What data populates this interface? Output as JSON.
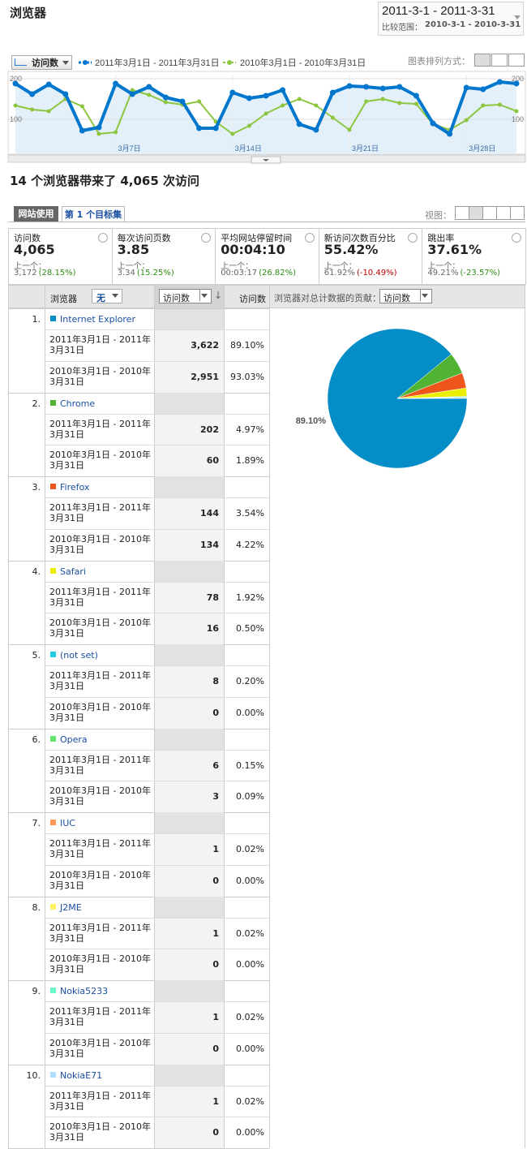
{
  "header": {
    "title": "浏览器",
    "date_range": "2011-3-1 - 2011-3-31",
    "compare_label": "比较范围：",
    "compare_range": "2010-3-1 - 2010-3-31"
  },
  "toolbar": {
    "metric": "访问数",
    "arrangement_label": "图表排列方式："
  },
  "chart_data": [
    {
      "type": "line",
      "categories": [
        null,
        null,
        null,
        null,
        null,
        null,
        "3月7日",
        null,
        null,
        null,
        null,
        null,
        null,
        "3月14日",
        null,
        null,
        null,
        null,
        null,
        null,
        "3月21日",
        null,
        null,
        null,
        null,
        null,
        null,
        "3月28日",
        null,
        null,
        null
      ],
      "series": [
        {
          "name": "2011年3月1日 - 2011年3月31日",
          "color": "#0077cc",
          "values": [
            188,
            162,
            186,
            162,
            72,
            80,
            188,
            162,
            180,
            154,
            144,
            78,
            78,
            166,
            152,
            158,
            172,
            88,
            74,
            166,
            182,
            180,
            176,
            180,
            158,
            90,
            64,
            178,
            174,
            192,
            188
          ]
        },
        {
          "name": "2010年3月1日 - 2010年3月31日",
          "color": "#8cc63f",
          "values": [
            134,
            124,
            120,
            150,
            132,
            64,
            68,
            172,
            160,
            142,
            136,
            144,
            94,
            64,
            84,
            114,
            134,
            150,
            134,
            104,
            74,
            144,
            150,
            140,
            138,
            88,
            74,
            98,
            134,
            136,
            120
          ]
        }
      ],
      "ylim": [
        14,
        210
      ],
      "yticks": [
        100,
        200
      ],
      "grid": true,
      "area": true
    },
    {
      "type": "pie",
      "values": [
        89.1,
        4.97,
        3.54,
        1.92,
        0.2,
        0.15,
        0.02,
        0.02,
        0.02,
        0.02
      ],
      "colors": [
        "#058dc7",
        "#50b432",
        "#ed561b",
        "#edef00",
        "#24cbe5",
        "#64e572",
        "#ff9655",
        "#fff263",
        "#6af9c4",
        "#b2deff"
      ],
      "value_labels": [
        "89.10%",
        null,
        null,
        null,
        null,
        null,
        null,
        null,
        null,
        null
      ]
    }
  ],
  "summary": "14 个浏览器带来了 4,065 次访问",
  "tabs": [
    "网站使用",
    "第 1 个目标集"
  ],
  "view_label": "视图：",
  "metrics": [
    {
      "label": "访问数",
      "value": "4,065",
      "prev_label": "上一个：",
      "prev": "3,172",
      "change": "(28.15%)",
      "change_color": "#2f8f16"
    },
    {
      "label": "每次访问页数",
      "value": "3.85",
      "prev_label": "上一个：",
      "prev": "3.34",
      "change": "(15.25%)",
      "change_color": "#2f8f16"
    },
    {
      "label": "平均网站停留时间",
      "value": "00:04:10",
      "prev_label": "上一个：",
      "prev": "00:03:17",
      "change": "(26.82%)",
      "change_color": "#2f8f16"
    },
    {
      "label": "新访问次数百分比",
      "value": "55.42%",
      "prev_label": "上一个：",
      "prev": "61.92%",
      "change": "(-10.49%)",
      "change_color": "#c00000"
    },
    {
      "label": "跳出率",
      "value": "37.61%",
      "prev_label": "上一个：",
      "prev": "49.21%",
      "change": "(-23.57%)",
      "change_color": "#2f8f16"
    }
  ],
  "table": {
    "headers": {
      "dimension": "浏览器",
      "secondary": "无",
      "sort_metric": "访问数",
      "metric": "访问数",
      "contribution": "浏览器对总计数据的贡献：",
      "contribution_metric": "访问数"
    },
    "periods": [
      "2011年3月1日 - 2011年3月31日",
      "2010年3月1日 - 2010年3月31日"
    ],
    "rows": [
      {
        "index": "1.",
        "name": "Internet Explorer",
        "visits": [
          "3,622",
          "2,951"
        ],
        "shares": [
          "89.10%",
          "93.03%"
        ]
      },
      {
        "index": "2.",
        "name": "Chrome",
        "visits": [
          "202",
          "60"
        ],
        "shares": [
          "4.97%",
          "1.89%"
        ]
      },
      {
        "index": "3.",
        "name": "Firefox",
        "visits": [
          "144",
          "134"
        ],
        "shares": [
          "3.54%",
          "4.22%"
        ]
      },
      {
        "index": "4.",
        "name": "Safari",
        "visits": [
          "78",
          "16"
        ],
        "shares": [
          "1.92%",
          "0.50%"
        ]
      },
      {
        "index": "5.",
        "name": "(not set)",
        "visits": [
          "8",
          "0"
        ],
        "shares": [
          "0.20%",
          "0.00%"
        ]
      },
      {
        "index": "6.",
        "name": "Opera",
        "visits": [
          "6",
          "3"
        ],
        "shares": [
          "0.15%",
          "0.09%"
        ]
      },
      {
        "index": "7.",
        "name": "IUC",
        "visits": [
          "1",
          "0"
        ],
        "shares": [
          "0.02%",
          "0.00%"
        ]
      },
      {
        "index": "8.",
        "name": "J2ME",
        "visits": [
          "1",
          "0"
        ],
        "shares": [
          "0.02%",
          "0.00%"
        ]
      },
      {
        "index": "9.",
        "name": "Nokia5233",
        "visits": [
          "1",
          "0"
        ],
        "shares": [
          "0.02%",
          "0.00%"
        ]
      },
      {
        "index": "10.",
        "name": "NokiaE71",
        "visits": [
          "1",
          "0"
        ],
        "shares": [
          "0.02%",
          "0.00%"
        ]
      }
    ]
  }
}
